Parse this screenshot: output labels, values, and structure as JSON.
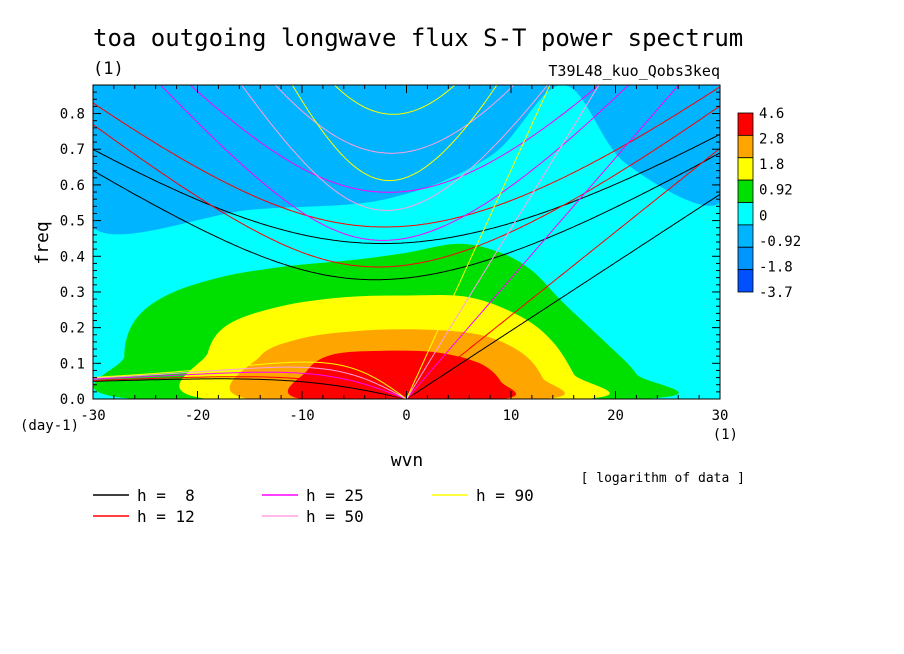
{
  "chart_data": {
    "type": "heatmap",
    "title": "toa outgoing longwave flux S-T power spectrum",
    "title_units": "(1)",
    "experiment": "T39L48_kuo_Qobs3keq",
    "xlabel": "wvn",
    "x_units": "(1)",
    "ylabel": "freq",
    "y_units": "(day-1)",
    "xlim": [
      -30,
      30
    ],
    "ylim": [
      0,
      0.88
    ],
    "x_ticks": [
      -30,
      -20,
      -10,
      0,
      10,
      20,
      30
    ],
    "x_tick_labels": [
      "-30",
      "-20",
      "-10",
      "0",
      "10",
      "20",
      "30"
    ],
    "y_ticks": [
      0,
      0.1,
      0.2,
      0.3,
      0.4,
      0.5,
      0.6,
      0.7,
      0.8
    ],
    "y_tick_labels": [
      "0.0",
      "0.1",
      "0.2",
      "0.3",
      "0.4",
      "0.5",
      "0.6",
      "0.7",
      "0.8"
    ],
    "note": "[ logarithm of data ]",
    "colorbar": {
      "labels": [
        "4.6",
        "2.8",
        "1.8",
        "0.92",
        "0",
        "-0.92",
        "-1.8",
        "-3.7"
      ],
      "colors": [
        "#ff0000",
        "#ffa500",
        "#ffff00",
        "#00e000",
        "#00ffff",
        "#00b4ff",
        "#0096ff",
        "#0050ff"
      ]
    },
    "contour_levels": [
      {
        "upper": 4.6,
        "lower": 2.8,
        "color": "#ff0000"
      },
      {
        "upper": 2.8,
        "lower": 1.8,
        "color": "#ffa500"
      },
      {
        "upper": 1.8,
        "lower": 0.92,
        "color": "#ffff00"
      },
      {
        "upper": 0.92,
        "lower": 0,
        "color": "#00e000"
      },
      {
        "upper": 0,
        "lower": -0.92,
        "color": "#00ffff"
      },
      {
        "upper": -0.92,
        "lower": -1.8,
        "color": "#00b4ff"
      },
      {
        "upper": -1.8,
        "lower": -3.7,
        "color": "#0096ff"
      }
    ],
    "field_regions": [
      {
        "level": -1.8,
        "color": "#0096ff",
        "points": [
          [
            -30,
            0.88
          ],
          [
            -15,
            0.88
          ],
          [
            -19,
            0.8
          ],
          [
            -26,
            0.78
          ],
          [
            -30,
            0.74
          ]
        ]
      },
      {
        "level": -1.5,
        "color": "#00b4ff",
        "points": [
          [
            -30,
            0.88
          ],
          [
            30,
            0.88
          ],
          [
            30,
            0.55
          ],
          [
            21,
            0.66
          ],
          [
            15,
            0.88
          ],
          [
            8,
            0.68
          ],
          [
            -2,
            0.56
          ],
          [
            -15,
            0.53
          ],
          [
            -30,
            0.48
          ]
        ]
      },
      {
        "level": 0.4,
        "color": "#00e000",
        "points": [
          [
            -26,
            0
          ],
          [
            22.5,
            0
          ],
          [
            22,
            0.07
          ],
          [
            19,
            0.16
          ],
          [
            15,
            0.27
          ],
          [
            12,
            0.36
          ],
          [
            9,
            0.41
          ],
          [
            5,
            0.435
          ],
          [
            0,
            0.41
          ],
          [
            -5,
            0.39
          ],
          [
            -12,
            0.37
          ],
          [
            -18,
            0.34
          ],
          [
            -23,
            0.29
          ],
          [
            -26,
            0.22
          ],
          [
            -27,
            0.12
          ]
        ]
      },
      {
        "level": 1.3,
        "color": "#ffff00",
        "points": [
          [
            -19,
            0
          ],
          [
            17,
            0
          ],
          [
            16,
            0.07
          ],
          [
            14,
            0.16
          ],
          [
            11,
            0.23
          ],
          [
            6,
            0.285
          ],
          [
            0,
            0.29
          ],
          [
            -6,
            0.285
          ],
          [
            -12,
            0.26
          ],
          [
            -17,
            0.21
          ],
          [
            -19,
            0.13
          ]
        ]
      },
      {
        "level": 2.3,
        "color": "#ffa500",
        "points": [
          [
            -15,
            0
          ],
          [
            13,
            0
          ],
          [
            13,
            0.06
          ],
          [
            11,
            0.13
          ],
          [
            7,
            0.18
          ],
          [
            1,
            0.195
          ],
          [
            -5,
            0.19
          ],
          [
            -10,
            0.17
          ],
          [
            -14,
            0.12
          ]
        ]
      },
      {
        "level": 3.7,
        "color": "#ff0000",
        "points": [
          [
            -10,
            0
          ],
          [
            9,
            0
          ],
          [
            9,
            0.05
          ],
          [
            7,
            0.1
          ],
          [
            3,
            0.13
          ],
          [
            -2,
            0.135
          ],
          [
            -7,
            0.125
          ],
          [
            -9.5,
            0.08
          ]
        ]
      }
    ],
    "dispersion_curves": [
      {
        "name": "h =  8",
        "color": "#000000"
      },
      {
        "name": "h = 12",
        "color": "#ff0000"
      },
      {
        "name": "h = 25",
        "color": "#ff00ff"
      },
      {
        "name": "h = 50",
        "color": "#ffa0e0"
      },
      {
        "name": "h = 90",
        "color": "#ffff00"
      }
    ]
  }
}
